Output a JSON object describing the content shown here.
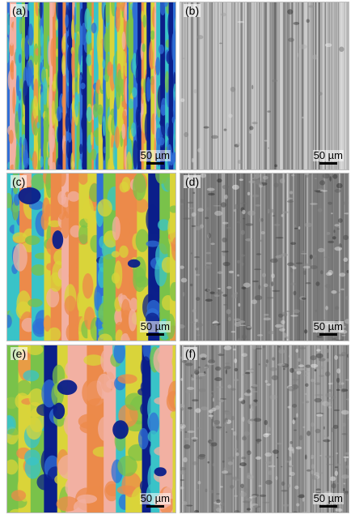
{
  "panels": [
    {
      "label": "(a)",
      "kind": "heatmap-striped",
      "scale_text": "50 µm"
    },
    {
      "label": "(b)",
      "kind": "sem-striped",
      "scale_text": "50 µm"
    },
    {
      "label": "(c)",
      "kind": "heatmap-mixed",
      "scale_text": "50 µm"
    },
    {
      "label": "(d)",
      "kind": "sem-light",
      "scale_text": "50 µm"
    },
    {
      "label": "(e)",
      "kind": "heatmap-wide",
      "scale_text": "50 µm"
    },
    {
      "label": "(f)",
      "kind": "sem-rough",
      "scale_text": "50 µm"
    }
  ],
  "colors": {
    "dark_blue": "#0b1f8a",
    "blue": "#2f6fd6",
    "cyan": "#39c3c8",
    "green": "#79c24a",
    "yellow": "#d9d43a",
    "orange": "#ec8a4a",
    "pink": "#f2b0a2",
    "sem_light": "#d9d9d9",
    "sem_dark": "#5d5d5d"
  }
}
